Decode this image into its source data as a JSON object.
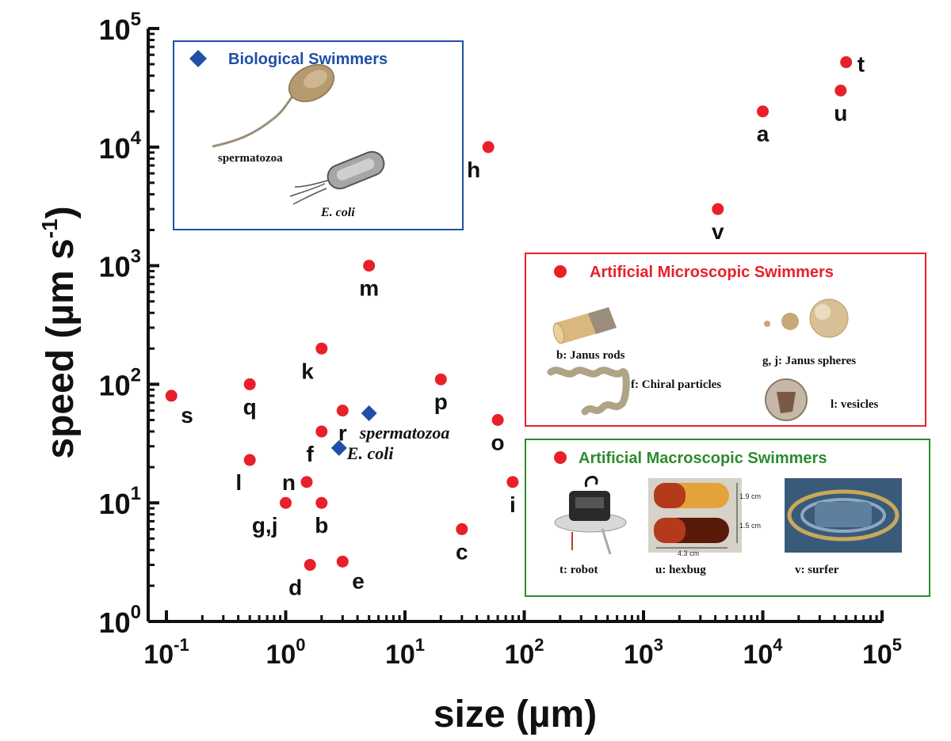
{
  "chart_data": {
    "type": "scatter",
    "xscale": "log",
    "yscale": "log",
    "xlim": [
      0.1,
      100000
    ],
    "ylim": [
      1,
      100000
    ],
    "xlabel": "size (µm)",
    "ylabel_main": "speed (µm s",
    "ylabel_sup": "-1",
    "ylabel_close": ")",
    "x_ticks": [
      {
        "value": 0.1,
        "base": "10",
        "exp": "-1"
      },
      {
        "value": 1,
        "base": "10",
        "exp": "0"
      },
      {
        "value": 10,
        "base": "10",
        "exp": "1"
      },
      {
        "value": 100,
        "base": "10",
        "exp": "2"
      },
      {
        "value": 1000,
        "base": "10",
        "exp": "3"
      },
      {
        "value": 10000,
        "base": "10",
        "exp": "4"
      },
      {
        "value": 100000,
        "base": "10",
        "exp": "5"
      }
    ],
    "y_ticks": [
      {
        "value": 1,
        "base": "10",
        "exp": "0"
      },
      {
        "value": 10,
        "base": "10",
        "exp": "1"
      },
      {
        "value": 100,
        "base": "10",
        "exp": "2"
      },
      {
        "value": 1000,
        "base": "10",
        "exp": "3"
      },
      {
        "value": 10000,
        "base": "10",
        "exp": "4"
      },
      {
        "value": 100000,
        "base": "10",
        "exp": "5"
      }
    ],
    "series": [
      {
        "name": "Artificial Swimmers",
        "marker": "circle",
        "color": "#e8202a",
        "points": [
          {
            "label": "a",
            "x": 10000,
            "y": 20000,
            "pos": "below"
          },
          {
            "label": "b",
            "x": 2,
            "y": 10,
            "pos": "below"
          },
          {
            "label": "c",
            "x": 30,
            "y": 6,
            "pos": "below"
          },
          {
            "label": "d",
            "x": 1.6,
            "y": 3,
            "pos": "below-left"
          },
          {
            "label": "e",
            "x": 3,
            "y": 3.2,
            "pos": "below-right"
          },
          {
            "label": "f",
            "x": 2,
            "y": 40,
            "pos": "below-left"
          },
          {
            "label": "g,j",
            "x": 1,
            "y": 10,
            "pos": "below-left"
          },
          {
            "label": "h",
            "x": 50,
            "y": 10000,
            "pos": "below-left"
          },
          {
            "label": "i",
            "x": 80,
            "y": 15,
            "pos": "below"
          },
          {
            "label": "k",
            "x": 2,
            "y": 200,
            "pos": "below-left"
          },
          {
            "label": "l",
            "x": 0.5,
            "y": 23,
            "pos": "below-left"
          },
          {
            "label": "m",
            "x": 5,
            "y": 1000,
            "pos": "below"
          },
          {
            "label": "n",
            "x": 1.5,
            "y": 15,
            "pos": "left"
          },
          {
            "label": "o",
            "x": 60,
            "y": 50,
            "pos": "below"
          },
          {
            "label": "p",
            "x": 20,
            "y": 110,
            "pos": "below"
          },
          {
            "label": "q",
            "x": 0.5,
            "y": 100,
            "pos": "below"
          },
          {
            "label": "r",
            "x": 3,
            "y": 60,
            "pos": "below"
          },
          {
            "label": "s",
            "x": 0.11,
            "y": 80,
            "pos": "below-right"
          },
          {
            "label": "t",
            "x": 50000,
            "y": 52000,
            "pos": "right"
          },
          {
            "label": "u",
            "x": 45000,
            "y": 30000,
            "pos": "below"
          },
          {
            "label": "v",
            "x": 4200,
            "y": 3000,
            "pos": "below"
          }
        ]
      },
      {
        "name": "Biological Swimmers",
        "marker": "diamond",
        "color": "#1f4fa8",
        "points": [
          {
            "label": "spermatozoa",
            "x": 5,
            "y": 57,
            "pos": "below-right"
          },
          {
            "label": "E. coli",
            "x": 2.8,
            "y": 29,
            "pos": "right"
          }
        ]
      }
    ],
    "legends": {
      "biological": {
        "title": "Biological Swimmers",
        "color": "#1f4fa8",
        "captions": [
          "spermatozoa",
          "E. coli"
        ]
      },
      "micro": {
        "title": "Artificial Microscopic Swimmers",
        "color": "#e8202a",
        "captions": [
          "b: Janus rods",
          "f: Chiral particles",
          "g, j: Janus spheres",
          "l: vesicles"
        ]
      },
      "macro": {
        "title": "Artificial Macroscopic Swimmers",
        "color": "#2e8b2e",
        "captions": [
          "t: robot",
          "u: hexbug",
          "v: surfer"
        ],
        "hexbug_dims": [
          "1.9 cm",
          "1.5 cm",
          "4.3 cm"
        ]
      }
    }
  }
}
